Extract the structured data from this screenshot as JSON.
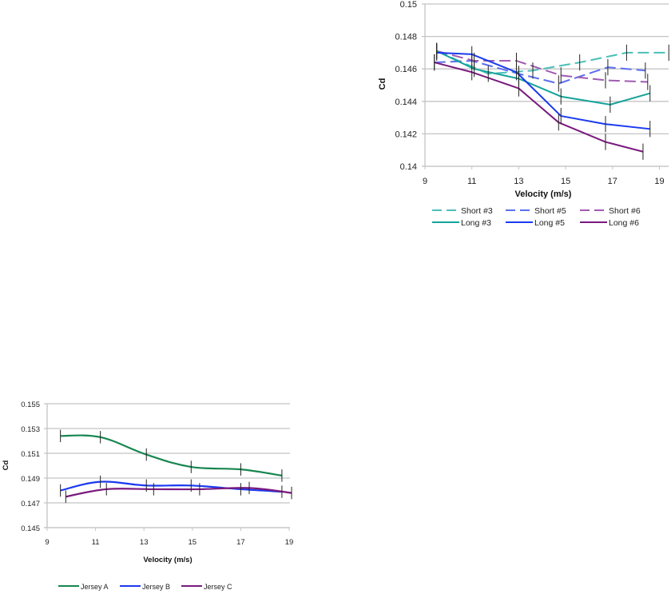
{
  "chart_data": [
    {
      "id": "top",
      "type": "line",
      "title": "",
      "xlabel": "Velocity (m/s)",
      "ylabel": "Cd",
      "xlim": [
        9,
        19.4
      ],
      "ylim": [
        0.14,
        0.15
      ],
      "xticks": [
        9,
        11,
        13,
        15,
        17,
        19
      ],
      "xtick_labels": [
        "9",
        "11",
        "13",
        "15",
        "17",
        "19"
      ],
      "yticks": [
        0.14,
        0.142,
        0.144,
        0.146,
        0.148,
        0.15
      ],
      "ytick_labels": [
        "0.14",
        "0.142",
        "0.144",
        "0.146",
        "0.148",
        "0.15"
      ],
      "grid": true,
      "legend_position": "bottom",
      "series": [
        {
          "name": "Short #3",
          "color": "#4bbfb9",
          "dashed": true,
          "x": [
            9.5,
            11.7,
            13.6,
            15.6,
            17.6,
            19.4
          ],
          "y": [
            0.1471,
            0.1457,
            0.1459,
            0.1464,
            0.147,
            0.147
          ],
          "err": 0.0005
        },
        {
          "name": "Short #5",
          "color": "#5b6ef0",
          "dashed": true,
          "x": [
            9.4,
            11.0,
            13.0,
            14.7,
            16.8,
            18.4
          ],
          "y": [
            0.1464,
            0.1465,
            0.1457,
            0.1451,
            0.1461,
            0.1459
          ],
          "err": 0.0005
        },
        {
          "name": "Short #6",
          "color": "#a05cb0",
          "dashed": true,
          "x": [
            9.5,
            11.1,
            12.9,
            14.8,
            16.7,
            18.5
          ],
          "y": [
            0.1471,
            0.1465,
            0.1465,
            0.1456,
            0.1453,
            0.1452
          ],
          "err": 0.0005
        },
        {
          "name": "Long #3",
          "color": "#13a39a",
          "dashed": false,
          "x": [
            9.5,
            11.1,
            13.0,
            14.8,
            16.9,
            18.6
          ],
          "y": [
            0.1471,
            0.146,
            0.1454,
            0.1443,
            0.1438,
            0.1445
          ],
          "err": 0.0005
        },
        {
          "name": "Long #5",
          "color": "#1a3af0",
          "dashed": false,
          "x": [
            9.5,
            11.0,
            12.9,
            14.8,
            16.7,
            18.6
          ],
          "y": [
            0.147,
            0.1469,
            0.1458,
            0.1431,
            0.1426,
            0.1423
          ],
          "err": 0.0005
        },
        {
          "name": "Long #6",
          "color": "#7a1a7e",
          "dashed": false,
          "x": [
            9.4,
            11.0,
            13.0,
            14.7,
            16.7,
            18.3
          ],
          "y": [
            0.1464,
            0.1458,
            0.1448,
            0.1427,
            0.1415,
            0.1409
          ],
          "err": 0.0005
        }
      ]
    },
    {
      "id": "bottom",
      "type": "line",
      "title": "",
      "xlabel": "Velocity (m/s)",
      "ylabel": "Cd",
      "xlim": [
        9,
        19
      ],
      "ylim": [
        0.145,
        0.155
      ],
      "xticks": [
        9,
        11,
        13,
        15,
        17,
        19
      ],
      "xtick_labels": [
        "9",
        "11",
        "13",
        "15",
        "17",
        "19"
      ],
      "yticks": [
        0.145,
        0.147,
        0.149,
        0.151,
        0.153,
        0.155
      ],
      "ytick_labels": [
        "0.145",
        "0.147",
        "0.149",
        "0.151",
        "0.153",
        "0.155"
      ],
      "grid": true,
      "legend_position": "bottom",
      "series": [
        {
          "name": "Jersey A",
          "color": "#17864f",
          "dashed": false,
          "x": [
            9.55,
            11.2,
            13.1,
            14.95,
            17.0,
            18.7
          ],
          "y": [
            0.1524,
            0.1523,
            0.1509,
            0.1499,
            0.1497,
            0.1492
          ],
          "err": 0.0005
        },
        {
          "name": "Jersey B",
          "color": "#1a3af0",
          "dashed": false,
          "x": [
            9.55,
            11.2,
            13.1,
            14.95,
            17.0,
            18.7
          ],
          "y": [
            0.148,
            0.1487,
            0.1484,
            0.1484,
            0.1481,
            0.1479
          ],
          "err": 0.0005
        },
        {
          "name": "Jersey C",
          "color": "#7a1a7e",
          "dashed": false,
          "x": [
            9.77,
            11.45,
            13.4,
            15.3,
            17.35,
            19.1
          ],
          "y": [
            0.1475,
            0.1481,
            0.1481,
            0.1481,
            0.1482,
            0.1478
          ],
          "err": 0.0005
        }
      ]
    }
  ]
}
